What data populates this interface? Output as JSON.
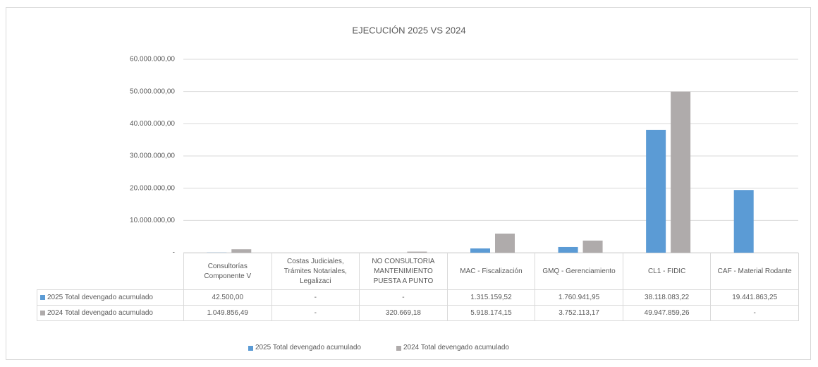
{
  "chart_data": {
    "type": "bar",
    "title": "EJECUCIÓN 2025 VS 2024",
    "categories": [
      "Consultorías Componente V",
      "Costas Judiciales, Trámites Notariales, Legalizaci",
      "NO CONSULTORIA MANTENIMIENTO PUESTA A PUNTO",
      "MAC - Fiscalización",
      "GMQ - Gerenciamiento",
      "CL1 - FIDIC",
      "CAF - Material Rodante"
    ],
    "series": [
      {
        "name": "2025 Total devengado acumulado",
        "color": "#5b9bd5",
        "values": [
          42500,
          null,
          null,
          1315159.52,
          1760941.95,
          38118083.22,
          19441863.25
        ],
        "value_labels": [
          "42.500,00",
          "-",
          "-",
          "1.315.159,52",
          "1.760.941,95",
          "38.118.083,22",
          "19.441.863,25"
        ]
      },
      {
        "name": "2024 Total devengado acumulado",
        "color": "#afabab",
        "values": [
          1049856.49,
          null,
          320669.18,
          5918174.15,
          3752113.17,
          49947859.26,
          null
        ],
        "value_labels": [
          "1.049.856,49",
          "-",
          "320.669,18",
          "5.918.174,15",
          "3.752.113,17",
          "49.947.859,26",
          "-"
        ]
      }
    ],
    "ylim": [
      0,
      60000000
    ],
    "yticks": [
      {
        "value": 0,
        "label": "-"
      },
      {
        "value": 10000000,
        "label": "10.000.000,00"
      },
      {
        "value": 20000000,
        "label": "20.000.000,00"
      },
      {
        "value": 30000000,
        "label": "30.000.000,00"
      },
      {
        "value": 40000000,
        "label": "40.000.000,00"
      },
      {
        "value": 50000000,
        "label": "50.000.000,00"
      },
      {
        "value": 60000000,
        "label": "60.000.000,00"
      }
    ],
    "grid": true
  }
}
